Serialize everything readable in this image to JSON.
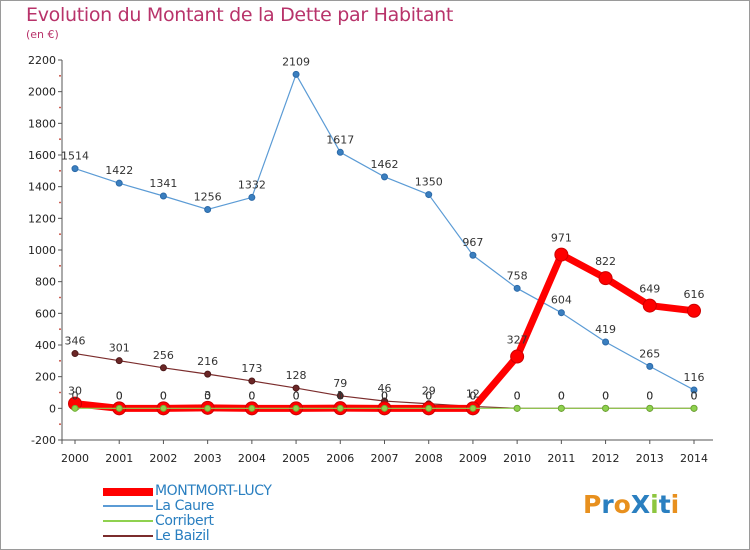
{
  "title": "Evolution du Montant de la Dette par Habitant",
  "subtitle": "(en €)",
  "logo": {
    "text": "ProXiti",
    "letters": [
      "P",
      "r",
      "o",
      "X",
      "i",
      "t",
      "i"
    ],
    "colors": [
      "#e8901e",
      "#2a7fc0",
      "#e8901e",
      "#2a7fc0",
      "#8dc63f",
      "#2a7fc0",
      "#e8901e"
    ]
  },
  "chart_data": {
    "type": "line",
    "title": "Evolution du Montant de la Dette par Habitant",
    "subtitle": "(en €)",
    "xlabel": "",
    "ylabel": "",
    "x": [
      "2000",
      "2001",
      "2002",
      "2003",
      "2004",
      "2005",
      "2006",
      "2007",
      "2008",
      "2009",
      "2010",
      "2011",
      "2012",
      "2013",
      "2014"
    ],
    "ylim": [
      -200,
      2200
    ],
    "yticks": [
      -200,
      0,
      200,
      400,
      600,
      800,
      1000,
      1200,
      1400,
      1600,
      1800,
      2000,
      2200
    ],
    "grid": false,
    "legend_position": "bottom-left",
    "series": [
      {
        "name": "La Caure",
        "color": "#5b9bd5",
        "values": [
          1514,
          1422,
          1341,
          1256,
          1332,
          2109,
          1617,
          1462,
          1350,
          967,
          758,
          604,
          419,
          265,
          116
        ]
      },
      {
        "name": "Corribert",
        "color": "#8fd14f",
        "values": [
          0,
          0,
          0,
          0,
          0,
          0,
          0,
          0,
          0,
          0,
          0,
          0,
          0,
          0,
          0
        ]
      },
      {
        "name": "Le Baizil",
        "color": "#7b2c2c",
        "values": [
          346,
          301,
          256,
          216,
          173,
          128,
          79,
          46,
          29,
          12,
          0,
          0,
          0,
          0,
          0
        ]
      },
      {
        "name": "MONTMORT-LUCY",
        "color": "#ff0000",
        "values": [
          30,
          0,
          0,
          3,
          0,
          0,
          1,
          0,
          0,
          0,
          327,
          971,
          822,
          649,
          616
        ]
      }
    ],
    "labels": [
      {
        "series": "La Caure",
        "texts": [
          "1514",
          "1422",
          "1341",
          "1256",
          "1332",
          "2109",
          "1617",
          "1462",
          "1350",
          "967",
          "758",
          "604",
          "419",
          "265",
          "116"
        ]
      },
      {
        "series": "Le Baizil",
        "texts": [
          "346",
          "301",
          "256",
          "216",
          "173",
          "128",
          "79",
          "46",
          "29",
          "12",
          "0",
          "0",
          "0",
          "0",
          "0"
        ]
      },
      {
        "series": "Corribert",
        "texts": [
          "0",
          "0",
          "0",
          "0",
          "0",
          "0",
          "0",
          "0",
          "0",
          "0",
          "0",
          "0",
          "0",
          "0",
          "0"
        ]
      },
      {
        "series": "MONTMORT-LUCY",
        "texts": [
          "30",
          "0",
          "0",
          "3",
          "0",
          "0",
          "1",
          "0",
          "0",
          "0",
          "327",
          "971",
          "822",
          "649",
          "616"
        ]
      }
    ],
    "legend": [
      {
        "name": "MONTMORT-LUCY",
        "color": "#ff0000",
        "style": "thick"
      },
      {
        "name": "La Caure",
        "color": "#5b9bd5",
        "style": "thin"
      },
      {
        "name": "Corribert",
        "color": "#8fd14f",
        "style": "thin"
      },
      {
        "name": "Le Baizil",
        "color": "#7b2c2c",
        "style": "thin"
      }
    ]
  }
}
